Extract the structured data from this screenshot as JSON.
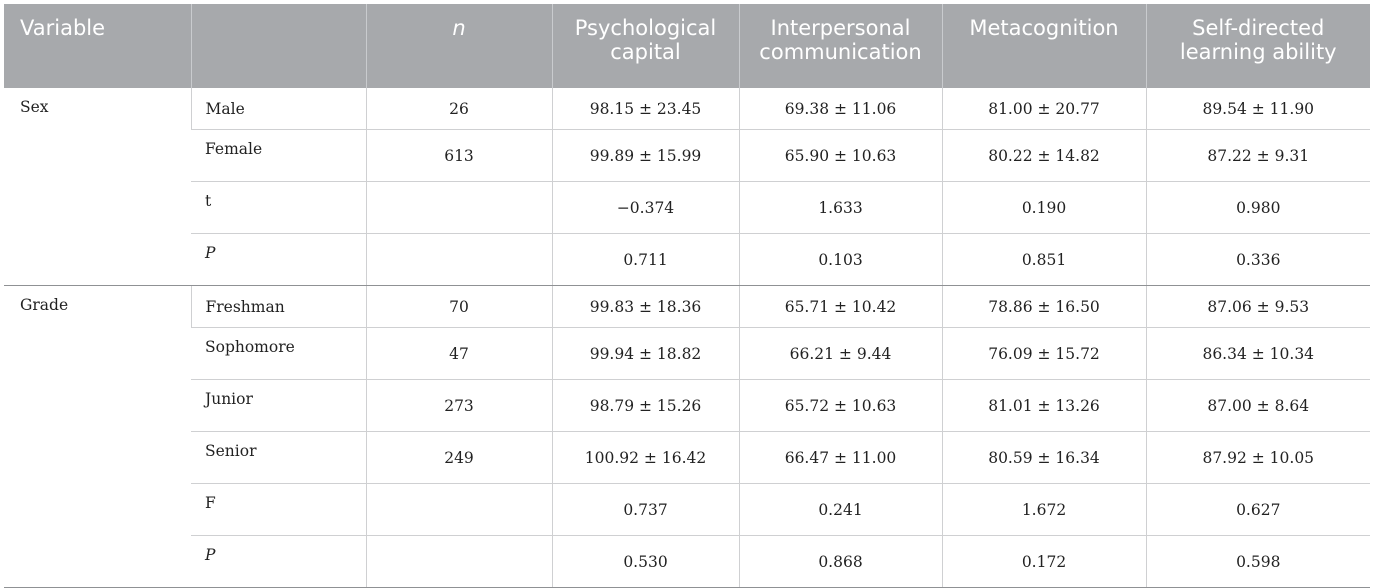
{
  "columns": {
    "variable": "Variable",
    "blank": "",
    "n": "n",
    "psych_line1": "Psychological",
    "psych_line2": "capital",
    "inter_line1": "Interpersonal",
    "inter_line2": "communication",
    "meta": "Metacognition",
    "self_line1": "Self-directed",
    "self_line2": "learning ability"
  },
  "groups": [
    {
      "name": "Sex",
      "rows": [
        {
          "label": "Male",
          "n": "26",
          "psych": "98.15 ± 23.45",
          "inter": "69.38 ± 11.06",
          "meta": "81.00 ± 20.77",
          "self": "89.54 ± 11.90"
        },
        {
          "label": "Female",
          "n": "613",
          "psych": "99.89 ± 15.99",
          "inter": "65.90 ± 10.63",
          "meta": "80.22 ± 14.82",
          "self": "87.22 ± 9.31"
        },
        {
          "label": "t",
          "n": "",
          "psych": "−0.374",
          "inter": "1.633",
          "meta": "0.190",
          "self": "0.980"
        },
        {
          "label": "P",
          "n": "",
          "psych": "0.711",
          "inter": "0.103",
          "meta": "0.851",
          "self": "0.336"
        }
      ]
    },
    {
      "name": "Grade",
      "rows": [
        {
          "label": "Freshman",
          "n": "70",
          "psych": "99.83 ± 18.36",
          "inter": "65.71 ± 10.42",
          "meta": "78.86 ± 16.50",
          "self": "87.06 ± 9.53"
        },
        {
          "label": "Sophomore",
          "n": "47",
          "psych": "99.94 ± 18.82",
          "inter": "66.21 ± 9.44",
          "meta": "76.09 ± 15.72",
          "self": "86.34 ± 10.34"
        },
        {
          "label": "Junior",
          "n": "273",
          "psych": "98.79 ± 15.26",
          "inter": "65.72 ± 10.63",
          "meta": "81.01 ± 13.26",
          "self": "87.00 ± 8.64"
        },
        {
          "label": "Senior",
          "n": "249",
          "psych": "100.92 ± 16.42",
          "inter": "66.47 ± 11.00",
          "meta": "80.59 ± 16.34",
          "self": "87.92 ± 10.05"
        },
        {
          "label": "F",
          "n": "",
          "psych": "0.737",
          "inter": "0.241",
          "meta": "1.672",
          "self": "0.627"
        },
        {
          "label": "P",
          "n": "",
          "psych": "0.530",
          "inter": "0.868",
          "meta": "0.172",
          "self": "0.598"
        }
      ]
    }
  ]
}
